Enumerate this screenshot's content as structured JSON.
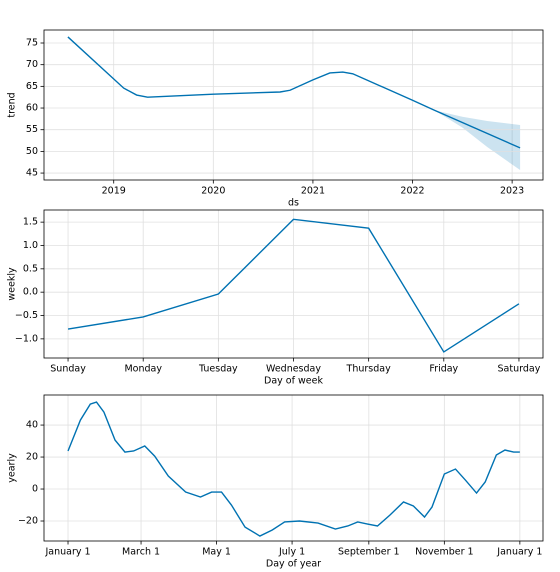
{
  "chart_data": [
    {
      "type": "line",
      "xlabel": "ds",
      "ylabel": "trend",
      "color": "#0072B2",
      "grid": true,
      "x": [
        2018.54,
        2019.1,
        2019.23,
        2019.34,
        2020.0,
        2020.67,
        2020.77,
        2021.0,
        2021.17,
        2021.3,
        2021.4,
        2022.0,
        2022.22,
        2023.08
      ],
      "values": [
        76.4,
        64.6,
        63.0,
        62.5,
        63.2,
        63.7,
        64.1,
        66.5,
        68.1,
        68.3,
        67.9,
        61.8,
        59.5,
        50.8
      ],
      "interval": {
        "x": [
          2022.22,
          2022.5,
          2022.75,
          2023.08
        ],
        "upper": [
          59.5,
          58.0,
          57.0,
          56.1
        ],
        "lower": [
          59.5,
          55.5,
          51.0,
          45.7
        ]
      },
      "xlim": [
        2018.3,
        2023.31
      ],
      "xticks": [
        2019,
        2020,
        2021,
        2022,
        2023
      ],
      "ylim": [
        43.4,
        78.0
      ],
      "yticks": [
        45,
        50,
        55,
        60,
        65,
        70,
        75
      ]
    },
    {
      "type": "line",
      "xlabel": "Day of week",
      "ylabel": "weekly",
      "color": "#0072B2",
      "grid": true,
      "categories": [
        "Sunday",
        "Monday",
        "Tuesday",
        "Wednesday",
        "Thursday",
        "Friday",
        "Saturday"
      ],
      "values": [
        -0.79,
        -0.53,
        -0.04,
        1.56,
        1.37,
        -1.28,
        -0.25
      ],
      "ylim": [
        -1.41,
        1.76
      ],
      "yticks": [
        {
          "value": -1.0,
          "label": "−1.0"
        },
        {
          "value": -0.5,
          "label": "−0.5"
        },
        {
          "value": 0.0,
          "label": "0.0"
        },
        {
          "value": 0.5,
          "label": "0.5"
        },
        {
          "value": 1.0,
          "label": "1.0"
        },
        {
          "value": 1.5,
          "label": "1.5"
        }
      ]
    },
    {
      "type": "line",
      "xlabel": "Day of year",
      "ylabel": "yearly",
      "color": "#0072B2",
      "grid": true,
      "x": [
        0,
        10,
        18,
        23,
        29,
        38,
        46,
        53,
        62,
        70,
        81,
        95,
        107,
        116,
        124,
        132,
        143,
        155,
        165,
        175,
        187,
        202,
        216,
        226,
        234,
        242,
        250,
        260,
        271,
        279,
        288,
        294,
        304,
        313,
        321,
        330,
        337,
        346,
        353,
        360,
        365
      ],
      "values": [
        23.8,
        43.1,
        53.1,
        54.4,
        48.1,
        30.6,
        23.1,
        23.8,
        26.9,
        20.6,
        8.1,
        -1.9,
        -5.0,
        -1.9,
        -1.9,
        -10.0,
        -23.8,
        -29.4,
        -25.6,
        -20.6,
        -20.0,
        -21.3,
        -25.0,
        -23.1,
        -20.6,
        -21.9,
        -23.1,
        -16.3,
        -8.1,
        -10.6,
        -17.5,
        -11.3,
        9.4,
        12.5,
        5.6,
        -2.5,
        4.4,
        21.3,
        24.4,
        23.1,
        23.1
      ],
      "xlim": [
        -19.4,
        383.7
      ],
      "xticks": [
        {
          "value": 0,
          "label": "January 1"
        },
        {
          "value": 59,
          "label": "March 1"
        },
        {
          "value": 120,
          "label": "May 1"
        },
        {
          "value": 181,
          "label": "July 1"
        },
        {
          "value": 243,
          "label": "September 1"
        },
        {
          "value": 304,
          "label": "November 1"
        },
        {
          "value": 365,
          "label": "January 1"
        }
      ],
      "ylim": [
        -32.5,
        58.8
      ],
      "yticks": [
        {
          "value": -20,
          "label": "−20"
        },
        0,
        20,
        40
      ]
    }
  ]
}
